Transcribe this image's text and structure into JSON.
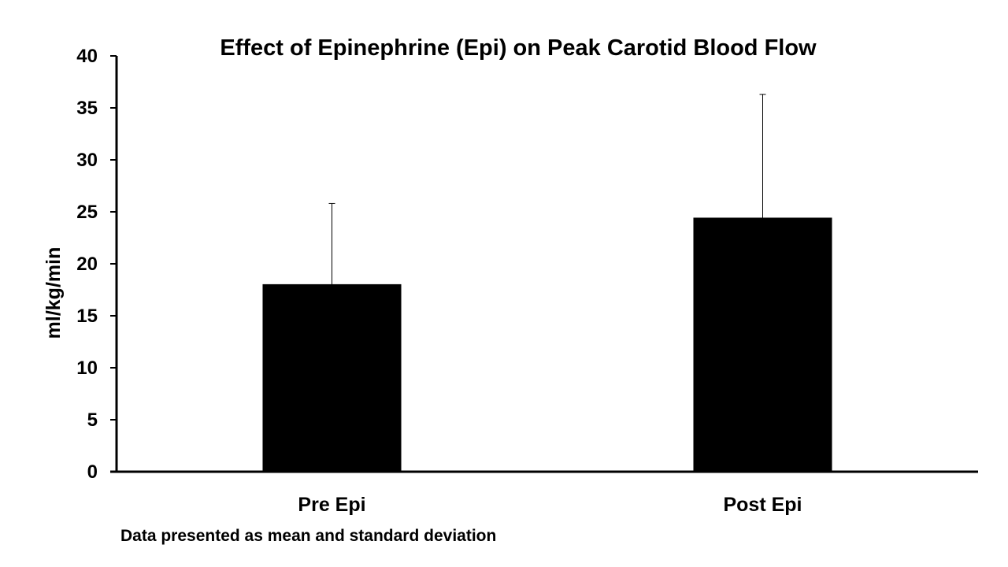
{
  "chart_data": {
    "type": "bar",
    "title": "Effect of Epinephrine (Epi) on Peak Carotid Blood Flow",
    "xlabel": "",
    "ylabel": "ml/kg/min",
    "categories": [
      "Pre Epi",
      "Post Epi"
    ],
    "values": [
      18,
      24.4
    ],
    "error_upper": [
      7.8,
      11.9
    ],
    "ylim": [
      0,
      40
    ],
    "yticks": [
      0,
      5,
      10,
      15,
      20,
      25,
      30,
      35,
      40
    ],
    "grid": false,
    "legend": "none",
    "bar_color": "#000000",
    "note": "Data presented as mean and standard deviation"
  }
}
